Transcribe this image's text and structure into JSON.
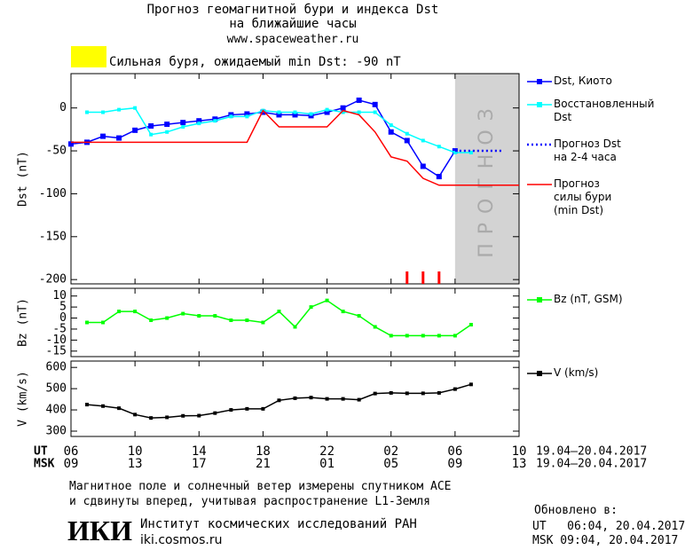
{
  "header": {
    "title": "Прогноз геомагнитной бури и индекса Dst",
    "subtitle": "на ближайшие часы",
    "url": "www.spaceweather.ru",
    "alert": "Сильная буря, ожидаемый min Dst: -90 nT",
    "alert_color": "#ffff00"
  },
  "chart_data": [
    {
      "type": "line",
      "ylabel": "Dst (nT)",
      "xlim": [
        0,
        28
      ],
      "ylim": [
        -205,
        40
      ],
      "yticks": [
        0,
        -50,
        -100,
        -150,
        -200
      ],
      "forecast_region": {
        "x": [
          24,
          28
        ],
        "label": "ПРОГНОЗ",
        "color": "#d3d3d3"
      },
      "storm_marks": {
        "x": [
          21,
          22,
          23
        ],
        "color": "#ff0000"
      },
      "series": [
        {
          "name": "Dst, Киото",
          "color": "#0000ff",
          "marker": "square",
          "dash": "solid",
          "x": [
            0,
            1,
            2,
            3,
            4,
            5,
            6,
            7,
            8,
            9,
            10,
            11,
            12,
            13,
            14,
            15,
            16,
            17,
            18,
            19,
            20,
            21,
            22,
            23,
            24
          ],
          "values": [
            -42,
            -40,
            -33,
            -35,
            -26,
            -21,
            -19,
            -17,
            -15,
            -13,
            -8,
            -7,
            -5,
            -8,
            -8,
            -9,
            -5,
            0,
            9,
            4,
            -28,
            -38,
            -68,
            -80,
            -50
          ]
        },
        {
          "name": "Восстановленный\nDst",
          "color": "#00ffff",
          "marker": "square-small",
          "dash": "solid",
          "x": [
            1,
            2,
            3,
            4,
            5,
            6,
            7,
            8,
            9,
            10,
            11,
            12,
            13,
            14,
            15,
            16,
            17,
            18,
            19,
            20,
            21,
            22,
            23,
            24,
            25
          ],
          "values": [
            -5,
            -5,
            -2,
            0,
            -31,
            -28,
            -22,
            -18,
            -15,
            -10,
            -10,
            -3,
            -5,
            -5,
            -7,
            -2,
            -5,
            -5,
            -5,
            -20,
            -30,
            -38,
            -45,
            -52,
            -52
          ]
        },
        {
          "name": "Прогноз Dst\nна 2-4 часа",
          "color": "#0000ff",
          "marker": "none",
          "dash": "dotted",
          "x": [
            24,
            27
          ],
          "values": [
            -50,
            -50
          ]
        },
        {
          "name": "Прогноз\nсилы бури\n(min Dst)",
          "color": "#ff0000",
          "marker": "none",
          "dash": "solid",
          "x": [
            0,
            11,
            12,
            13,
            16,
            17,
            18,
            19,
            20,
            21,
            22,
            23,
            28
          ],
          "values": [
            -40,
            -40,
            -3,
            -22,
            -22,
            -3,
            -8,
            -28,
            -57,
            -62,
            -82,
            -90,
            -90
          ]
        }
      ]
    },
    {
      "type": "line",
      "ylabel": "Bz (nT)",
      "xlim": [
        0,
        28
      ],
      "ylim": [
        -17.5,
        13.5
      ],
      "yticks": [
        10,
        5,
        0,
        -5,
        -10,
        -15
      ],
      "series": [
        {
          "name": "Bz (nT, GSM)",
          "color": "#00ff00",
          "marker": "square-small",
          "dash": "solid",
          "x": [
            1,
            2,
            3,
            4,
            5,
            6,
            7,
            8,
            9,
            10,
            11,
            12,
            13,
            14,
            15,
            16,
            17,
            18,
            19,
            20,
            21,
            22,
            23,
            24,
            25
          ],
          "values": [
            -2,
            -2,
            3,
            3,
            -1,
            0,
            2,
            1,
            1,
            -1,
            -1,
            -2,
            3,
            -4,
            5,
            8,
            3,
            1,
            -4,
            -8,
            -8,
            -8,
            -8,
            -8,
            -3
          ]
        }
      ]
    },
    {
      "type": "line",
      "ylabel": "V (km/s)",
      "xlim": [
        0,
        28
      ],
      "ylim": [
        275,
        630
      ],
      "yticks": [
        600,
        500,
        400,
        300
      ],
      "xticks": [
        {
          "value": 0,
          "label": "06"
        },
        {
          "value": 4,
          "label": "10"
        },
        {
          "value": 8,
          "label": "14"
        },
        {
          "value": 12,
          "label": "18"
        },
        {
          "value": 16,
          "label": "22"
        },
        {
          "value": 20,
          "label": "02"
        },
        {
          "value": 24,
          "label": "06"
        },
        {
          "value": 28,
          "label": "10"
        }
      ],
      "xticks_msk": [
        {
          "value": 0,
          "label": "09"
        },
        {
          "value": 4,
          "label": "13"
        },
        {
          "value": 8,
          "label": "17"
        },
        {
          "value": 12,
          "label": "21"
        },
        {
          "value": 16,
          "label": "01"
        },
        {
          "value": 20,
          "label": "05"
        },
        {
          "value": 24,
          "label": "09"
        },
        {
          "value": 28,
          "label": "13"
        }
      ],
      "xlabel_ut": "UT",
      "xlabel_msk": "MSK",
      "range_ut": "19.04–20.04.2017",
      "range_msk": "19.04–20.04.2017",
      "series": [
        {
          "name": "V (km/s)",
          "color": "#000000",
          "marker": "square-small",
          "dash": "solid",
          "x": [
            1,
            2,
            3,
            4,
            5,
            6,
            7,
            8,
            9,
            10,
            11,
            12,
            13,
            14,
            15,
            16,
            17,
            18,
            19,
            20,
            21,
            22,
            23,
            24,
            25
          ],
          "values": [
            425,
            418,
            408,
            378,
            362,
            365,
            372,
            373,
            385,
            400,
            405,
            405,
            445,
            455,
            458,
            452,
            452,
            448,
            477,
            480,
            478,
            478,
            480,
            498,
            520
          ]
        }
      ]
    }
  ],
  "footer": {
    "note": "Магнитное поле и солнечный ветер измерены спутником ACE\nи сдвинуты вперед, учитывая распространение L1-Земля",
    "logo": "ИКИ",
    "institute": "Институт космических исследований РАН",
    "site": "iki.cosmos.ru",
    "updated_title": "Обновлено в:",
    "updated_ut": "UT   06:04, 20.04.2017",
    "updated_msk": "MSK 09:04, 20.04.2017"
  }
}
